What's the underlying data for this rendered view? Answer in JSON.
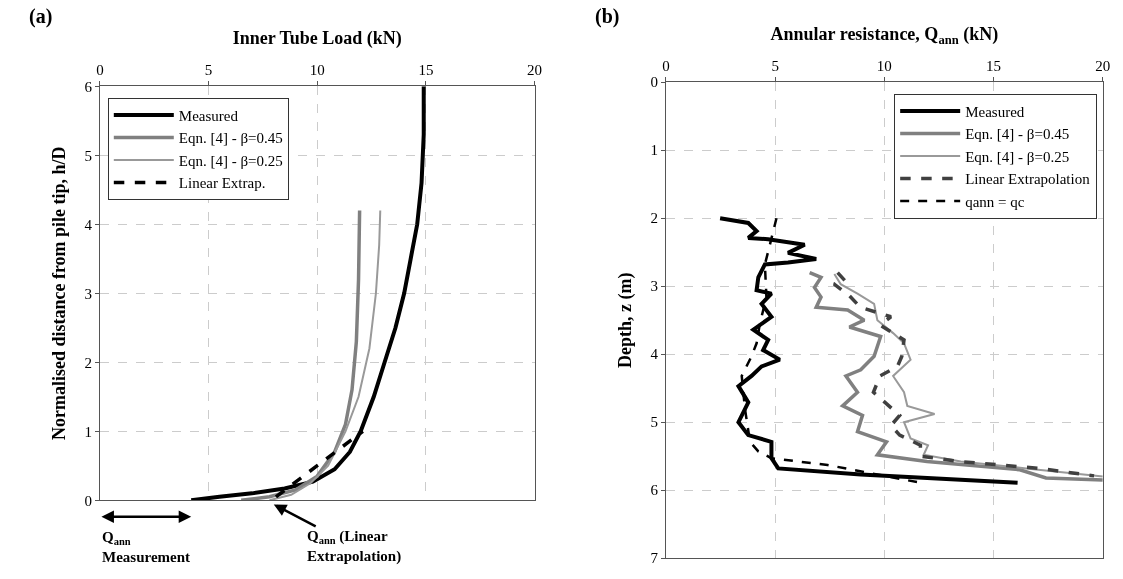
{
  "chart_data": [
    {
      "type": "line",
      "xlabel": "Inner Tube Load (kN)",
      "ylabel": "Normalised distance from pile tip, h/D",
      "xlim": [
        0,
        20
      ],
      "xticks": [
        0,
        5,
        10,
        15,
        20
      ],
      "ylim": [
        0,
        6
      ],
      "yticks": [
        0,
        1,
        2,
        3,
        4,
        5,
        6
      ],
      "grid": true,
      "legend": "top left",
      "annotations": [
        "(a)",
        {
          "text": "Q$_{ann}$\nMeasurement",
          "x": 4.2,
          "y": 0
        },
        {
          "text": "Q$_{ann}$ (Linear\nExtrapolation)",
          "x": 8,
          "y": 0
        }
      ],
      "series": [
        {
          "name": "Measured",
          "color": "#000000",
          "x": [
            4.2,
            5.5,
            7,
            8.5,
            9.8,
            10.8,
            11.5,
            12.0,
            12.6,
            13.1,
            13.6,
            14.0,
            14.3,
            14.6,
            14.8,
            14.9,
            14.9
          ],
          "values": [
            0,
            0.05,
            0.1,
            0.17,
            0.27,
            0.45,
            0.7,
            1.0,
            1.5,
            2.0,
            2.5,
            3.0,
            3.5,
            4.0,
            4.6,
            5.3,
            6.0
          ]
        },
        {
          "name": "Eqn. [4] - β=0.45",
          "color": "#808080",
          "x": [
            6.5,
            7.8,
            9.0,
            10.0,
            10.8,
            11.3,
            11.6,
            11.8,
            11.9,
            11.95
          ],
          "values": [
            0,
            0.05,
            0.15,
            0.35,
            0.7,
            1.1,
            1.6,
            2.3,
            3.2,
            4.2
          ]
        },
        {
          "name": "Eqn. [4] - β=0.25",
          "color": "#999999",
          "x": [
            7.8,
            8.8,
            9.7,
            10.5,
            11.3,
            11.9,
            12.4,
            12.7,
            12.85,
            12.9
          ],
          "values": [
            0,
            0.08,
            0.25,
            0.5,
            1.0,
            1.5,
            2.2,
            3.0,
            3.7,
            4.2
          ]
        },
        {
          "name": "Linear Extrap.",
          "color": "#000000",
          "line_style": "dashed",
          "x": [
            8.1,
            12.1
          ],
          "values": [
            0.05,
            1.0
          ]
        }
      ]
    },
    {
      "type": "line",
      "xlabel": "Annular resistance, Q$_{ann}$ (kN)",
      "ylabel": "Depth, z (m)",
      "xlim": [
        0,
        20
      ],
      "xticks": [
        0,
        5,
        10,
        15,
        20
      ],
      "ylim": [
        7,
        0
      ],
      "yticks": [
        0,
        1,
        2,
        3,
        4,
        5,
        6,
        7
      ],
      "grid": true,
      "legend": "top right",
      "annotations": [
        "(b)"
      ],
      "series": [
        {
          "name": "Measured",
          "color": "#000000",
          "x": [
            2.48,
            3.77,
            4.15,
            3.77,
            4.68,
            6.35,
            5.59,
            6.88,
            5.59,
            4.53,
            4.23,
            4.15,
            4.83,
            4.38,
            4.83,
            4.0,
            4.68,
            4.45,
            5.21,
            4.38,
            3.92,
            3.32,
            3.77,
            3.32,
            3.77,
            4.83,
            4.83,
            5.14,
            8.92,
            16.1
          ],
          "values": [
            2.0,
            2.07,
            2.19,
            2.29,
            2.31,
            2.39,
            2.51,
            2.6,
            2.65,
            2.68,
            2.87,
            3.06,
            3.11,
            3.26,
            3.45,
            3.64,
            3.79,
            3.94,
            4.08,
            4.18,
            4.32,
            4.47,
            4.71,
            5.0,
            5.19,
            5.29,
            5.53,
            5.68,
            5.77,
            5.89
          ]
        },
        {
          "name": "Eqn. [4] - β=0.45",
          "color": "#808080",
          "x": [
            6.58,
            7.1,
            6.8,
            7.1,
            6.88,
            8.32,
            9.08,
            8.4,
            9.83,
            9.53,
            8.92,
            8.24,
            8.77,
            8.09,
            9.0,
            8.77,
            10.1,
            9.68,
            11.95,
            16.2,
            17.4,
            20
          ],
          "values": [
            2.8,
            2.87,
            3.02,
            3.16,
            3.31,
            3.35,
            3.5,
            3.6,
            3.74,
            4.03,
            4.23,
            4.32,
            4.56,
            4.76,
            4.9,
            5.14,
            5.29,
            5.48,
            5.58,
            5.7,
            5.82,
            5.85
          ]
        },
        {
          "name": "Eqn. [4] - β=0.25",
          "color": "#999999",
          "x": [
            7.71,
            8.0,
            8.77,
            9.53,
            9.68,
            10.4,
            10.9,
            11.2,
            10.4,
            10.9,
            11.05,
            12.3,
            10.9,
            11.2,
            12.0,
            11.8,
            13.5,
            16.5,
            20
          ],
          "values": [
            2.82,
            2.97,
            3.11,
            3.26,
            3.5,
            3.69,
            3.84,
            4.08,
            4.32,
            4.56,
            4.76,
            4.88,
            5.0,
            5.24,
            5.34,
            5.48,
            5.58,
            5.68,
            5.8
          ]
        },
        {
          "name": "Linear Extrapolation",
          "color": "#404040",
          "line_style": "dashed",
          "x": [
            7.86,
            8.2,
            7.7,
            8.4,
            8.9,
            10.3,
            9.8,
            10.9,
            10.8,
            10.6,
            9.8,
            9.5,
            10.7,
            10.3,
            10.7,
            11.65,
            11.65,
            13.5,
            17.1,
            19.6
          ],
          "values": [
            2.8,
            2.92,
            2.97,
            3.14,
            3.31,
            3.45,
            3.57,
            3.79,
            4.03,
            4.18,
            4.32,
            4.56,
            4.9,
            5.05,
            5.19,
            5.34,
            5.5,
            5.58,
            5.68,
            5.79
          ]
        },
        {
          "name": "qann = qc",
          "color": "#000000",
          "line_style": "dashed",
          "x": [
            5.06,
            4.76,
            4.53,
            4.6,
            4.3,
            4.15,
            3.92,
            3.47,
            3.62,
            3.85,
            4.23,
            4.83,
            7.4,
            11.65
          ],
          "values": [
            2.0,
            2.39,
            2.68,
            3.16,
            3.55,
            3.84,
            4.03,
            4.32,
            4.81,
            5.29,
            5.43,
            5.53,
            5.63,
            5.89
          ]
        }
      ]
    }
  ]
}
